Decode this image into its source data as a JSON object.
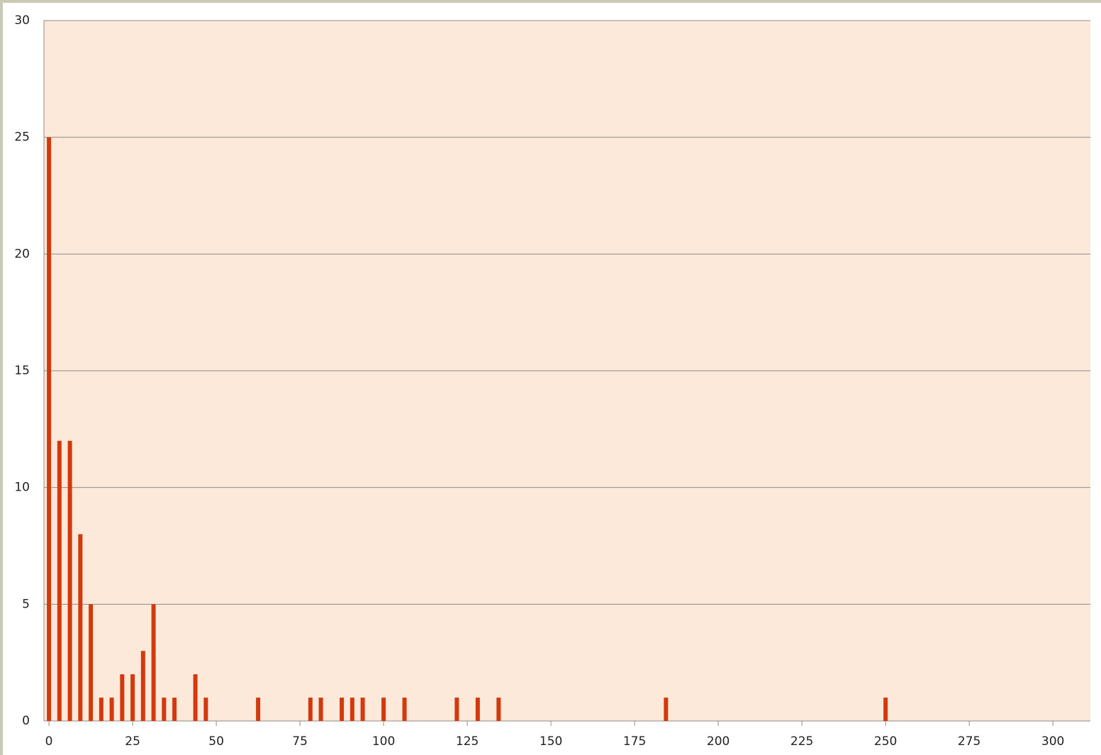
{
  "chart_data": {
    "type": "bar",
    "x": [
      0,
      3.125,
      6.25,
      9.375,
      12.5,
      15.625,
      18.75,
      21.875,
      25,
      28.125,
      31.25,
      34.375,
      37.5,
      43.75,
      46.875,
      62.5,
      78.125,
      81.25,
      87.5,
      90.625,
      93.75,
      100,
      106.25,
      121.875,
      128.125,
      134.375,
      184.375,
      250
    ],
    "values": [
      25,
      12,
      12,
      8,
      5,
      1,
      1,
      2,
      2,
      3,
      5,
      1,
      1,
      2,
      1,
      1,
      1,
      1,
      1,
      1,
      1,
      1,
      1,
      1,
      1,
      1,
      1,
      1
    ],
    "color": "#d23a0e",
    "xlim": [
      -1.5,
      311.2
    ],
    "xticks": [
      0,
      25,
      50,
      75,
      100,
      125,
      150,
      175,
      200,
      225,
      250,
      275,
      300
    ],
    "ylim": [
      0,
      30
    ],
    "yticks": [
      0,
      5,
      10,
      15,
      20,
      25,
      30
    ],
    "grid": true
  }
}
